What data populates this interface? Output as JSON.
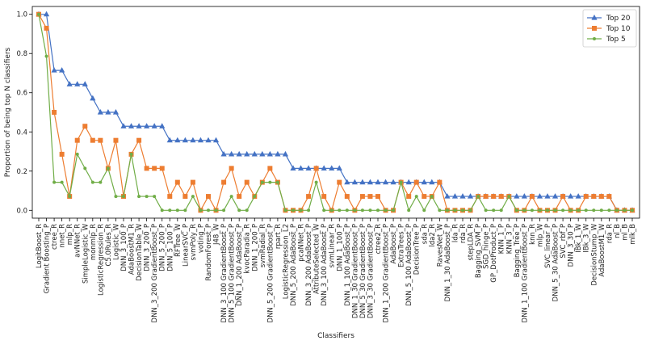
{
  "chart_data": {
    "type": "line",
    "xlabel": "Classifiers",
    "ylabel": "Proportion of being top N classifiers",
    "ylim": [
      -0.04,
      1.04
    ],
    "yticks": [
      0.0,
      0.2,
      0.4,
      0.6,
      0.8,
      1.0
    ],
    "ytick_labels": [
      "0.0",
      "0.2",
      "0.4",
      "0.6",
      "0.8",
      "1.0"
    ],
    "legend_position": "top-right",
    "grid": false,
    "categories": [
      "LogitBoost_R",
      "Gradient Boosting_P",
      "ctree_R",
      "nnet_R",
      "mlp_R",
      "avNNet_R",
      "SimpleLogistic_W",
      "monmlp_R",
      "LogisticRegression_R",
      "C5.0Rules_R",
      "Logistic_W",
      "DNN_3_100_P",
      "AdaBoostM1_R",
      "DecisionTable_W",
      "DNN_3_200_P",
      "DNN_3_200 GradientBoost_P",
      "DNN_5_200_P",
      "DNN_5_100_P",
      "RFTree_W",
      "LinearSVC_P",
      "svmPoly_R",
      "voting_P",
      "RandomForest_P",
      "J48_W",
      "DNN_3_100 GradientBoost_P",
      "DNN_5_100 GradientBoost_P",
      "DNN_1_200 AdaBoost_P",
      "kvocParadia_R",
      "DNN_1_200_P",
      "svmRadial_R",
      "DNN_5_200 GradientBoost_P",
      "rpart_R",
      "LogisticRegression_L2",
      "DNN_5_200 AdaBoost_P",
      "pcaNNet_R",
      "DNN_3_200 AdaBoost_P",
      "AttributeSelected_W",
      "DNN_3_100 AdaBoost_P",
      "svmLinear_R",
      "DNN_1_100_P",
      "DNN_1_100 AdaBoost_P",
      "DNN_1_30 GradientBoost_P",
      "DNN_5_30 GradientBoost_P",
      "DNN_3_30 GradientBoost_P",
      "ctree2_R",
      "DNN_1_200 GradientBoost_P",
      "AdaBoost_P",
      "ExtraTrees_P",
      "DNN_5_100 AdaBoost_P",
      "DecisionTree_P",
      "sda_R",
      "lda2_R",
      "RavesNet_W",
      "DNN_1_30 AdaBoost_P",
      "lda_R",
      "rda_R",
      "stepLDA_R",
      "Bagging_SVM_P",
      "SGD_hinge_P",
      "GP_DotProduct_P",
      "KNN_1_P",
      "KNN_3_P",
      "Bagging_Tree_P",
      "DNN_1_100 GradientBoost_P",
      "knn_R",
      "mlp_W",
      "SVC_linear_P",
      "DNN_5_30 AdaBoost_P",
      "SVC_rbf_P",
      "DNN_3_30_P",
      "IBk_1_W",
      "IBk_3_W",
      "DecisionStump_W",
      "AdaBoostM1_W",
      "rda_R",
      "nl_B",
      "ml_B",
      "mlk_B"
    ],
    "red_categories": [
      "nl_B",
      "ml_B",
      "mlk_B"
    ],
    "series": [
      {
        "name": "Top 20",
        "color": "#4472c4",
        "marker": "triangle",
        "values": [
          1.0,
          1.0,
          0.714,
          0.714,
          0.643,
          0.643,
          0.643,
          0.571,
          0.5,
          0.5,
          0.5,
          0.429,
          0.429,
          0.429,
          0.429,
          0.429,
          0.429,
          0.357,
          0.357,
          0.357,
          0.357,
          0.357,
          0.357,
          0.357,
          0.286,
          0.286,
          0.286,
          0.286,
          0.286,
          0.286,
          0.286,
          0.286,
          0.286,
          0.214,
          0.214,
          0.214,
          0.214,
          0.214,
          0.214,
          0.214,
          0.143,
          0.143,
          0.143,
          0.143,
          0.143,
          0.143,
          0.143,
          0.143,
          0.143,
          0.143,
          0.143,
          0.143,
          0.143,
          0.071,
          0.071,
          0.071,
          0.071,
          0.071,
          0.071,
          0.071,
          0.071,
          0.071,
          0.071,
          0.071,
          0.071,
          0.071,
          0.071,
          0.071,
          0.071,
          0.071,
          0.071,
          0.071,
          0.071,
          0.071,
          0.071,
          0.0,
          0.0,
          0.0
        ]
      },
      {
        "name": "Top 10",
        "color": "#ed7d31",
        "marker": "square",
        "values": [
          1.0,
          0.929,
          0.5,
          0.286,
          0.071,
          0.357,
          0.429,
          0.357,
          0.357,
          0.214,
          0.357,
          0.071,
          0.286,
          0.357,
          0.214,
          0.214,
          0.214,
          0.071,
          0.143,
          0.071,
          0.143,
          0.0,
          0.071,
          0.0,
          0.143,
          0.214,
          0.071,
          0.143,
          0.071,
          0.143,
          0.214,
          0.143,
          0.0,
          0.0,
          0.0,
          0.071,
          0.214,
          0.071,
          0.0,
          0.143,
          0.071,
          0.0,
          0.071,
          0.071,
          0.071,
          0.0,
          0.0,
          0.143,
          0.071,
          0.143,
          0.071,
          0.071,
          0.143,
          0.0,
          0.0,
          0.0,
          0.0,
          0.071,
          0.071,
          0.071,
          0.071,
          0.071,
          0.0,
          0.0,
          0.071,
          0.0,
          0.0,
          0.0,
          0.071,
          0.0,
          0.0,
          0.071,
          0.071,
          0.071,
          0.071,
          0.0,
          0.0,
          0.0
        ]
      },
      {
        "name": "Top 5",
        "color": "#70ad47",
        "marker": "circle",
        "values": [
          1.0,
          0.786,
          0.143,
          0.143,
          0.071,
          0.286,
          0.214,
          0.143,
          0.143,
          0.214,
          0.071,
          0.071,
          0.286,
          0.071,
          0.071,
          0.071,
          0.0,
          0.0,
          0.0,
          0.0,
          0.071,
          0.0,
          0.0,
          0.0,
          0.0,
          0.071,
          0.0,
          0.0,
          0.071,
          0.143,
          0.143,
          0.143,
          0.0,
          0.0,
          0.0,
          0.0,
          0.143,
          0.0,
          0.0,
          0.0,
          0.0,
          0.0,
          0.0,
          0.0,
          0.0,
          0.0,
          0.0,
          0.143,
          0.0,
          0.071,
          0.0,
          0.071,
          0.0,
          0.0,
          0.0,
          0.0,
          0.0,
          0.071,
          0.0,
          0.0,
          0.0,
          0.071,
          0.0,
          0.0,
          0.0,
          0.0,
          0.0,
          0.0,
          0.0,
          0.0,
          0.0,
          0.0,
          0.0,
          0.0,
          0.0,
          0.0,
          0.0,
          0.0
        ]
      }
    ]
  }
}
